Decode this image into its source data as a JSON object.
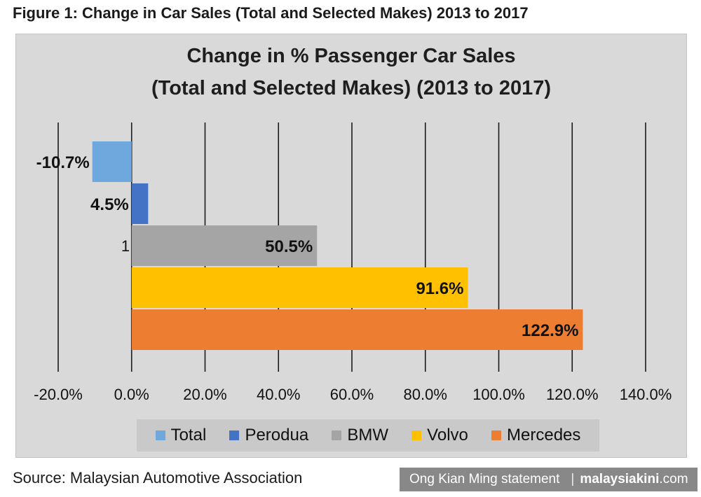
{
  "figure_title": "Figure 1: Change in Car Sales (Total and Selected Makes) 2013 to 2017",
  "source": "Source: Malaysian Automotive Association",
  "credit": {
    "statement": "Ong Kian Ming statement",
    "separator": "|",
    "brand": "malaysiakini",
    "domain": ".com"
  },
  "chart_data": {
    "type": "bar",
    "orientation": "horizontal",
    "title_line1": "Change in % Passenger Car Sales",
    "title_line2": "(Total and Selected Makes) (2013 to 2017)",
    "category_label": "1",
    "xlim": [
      -20,
      140
    ],
    "xticks": [
      -20,
      0,
      20,
      40,
      60,
      80,
      100,
      120,
      140
    ],
    "xtick_labels": [
      "-20.0%",
      "0.0%",
      "20.0%",
      "40.0%",
      "60.0%",
      "80.0%",
      "100.0%",
      "120.0%",
      "140.0%"
    ],
    "grid": "vertical",
    "legend_position": "bottom",
    "series": [
      {
        "name": "Total",
        "value": -10.7,
        "label": "-10.7%",
        "color": "#6fa8dc"
      },
      {
        "name": "Perodua",
        "value": 4.5,
        "label": "4.5%",
        "color": "#4472c4"
      },
      {
        "name": "BMW",
        "value": 50.5,
        "label": "50.5%",
        "color": "#a5a5a5"
      },
      {
        "name": "Volvo",
        "value": 91.6,
        "label": "91.6%",
        "color": "#ffc000"
      },
      {
        "name": "Mercedes",
        "value": 122.9,
        "label": "122.9%",
        "color": "#ed7d31"
      }
    ]
  }
}
